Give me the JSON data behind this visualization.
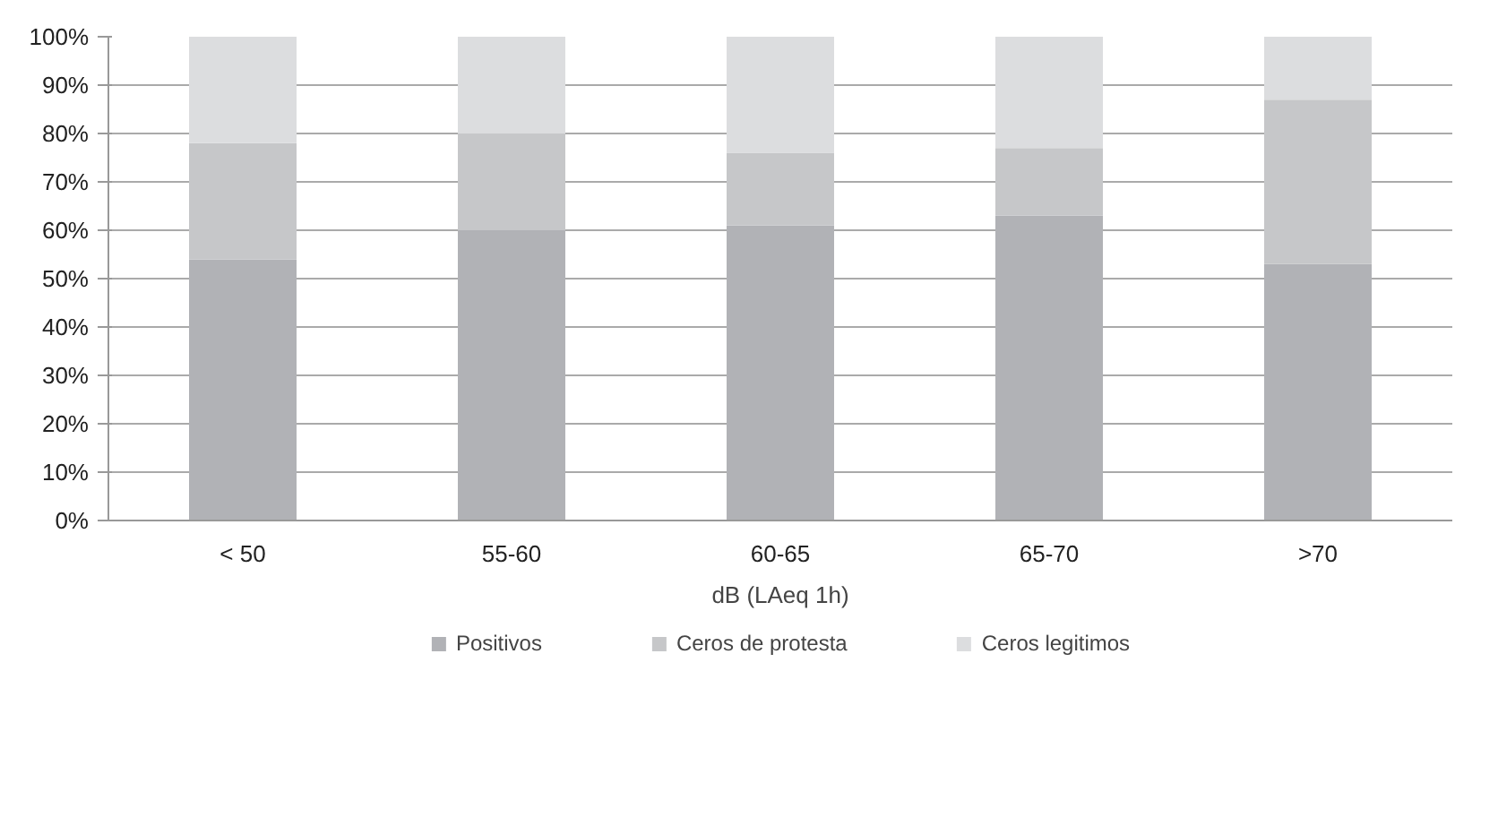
{
  "chart_data": {
    "type": "bar",
    "stacked": true,
    "xlabel": "dB (LAeq 1h)",
    "categories": [
      "< 50",
      "55-60",
      "60-65",
      "65-70",
      ">70"
    ],
    "series": [
      {
        "name": "Positivos",
        "color": "#b1b2b6",
        "values": [
          54,
          60,
          61,
          63,
          53
        ]
      },
      {
        "name": "Ceros de protesta",
        "color": "#c6c7c9",
        "values": [
          24,
          20,
          15,
          14,
          34
        ]
      },
      {
        "name": "Ceros legitimos",
        "color": "#dcdddf",
        "values": [
          22,
          20,
          24,
          23,
          13
        ]
      }
    ],
    "ylim": [
      0,
      100
    ],
    "yticks": [
      {
        "value": 0,
        "label": "0%"
      },
      {
        "value": 10,
        "label": "10%"
      },
      {
        "value": 20,
        "label": "20%"
      },
      {
        "value": 30,
        "label": "30%"
      },
      {
        "value": 40,
        "label": "40%"
      },
      {
        "value": 50,
        "label": "50%"
      },
      {
        "value": 60,
        "label": "60%"
      },
      {
        "value": 70,
        "label": "70%"
      },
      {
        "value": 80,
        "label": "80%"
      },
      {
        "value": 90,
        "label": "90%"
      },
      {
        "value": 100,
        "label": "100%"
      }
    ],
    "grid": "y",
    "legend": "bottom"
  }
}
